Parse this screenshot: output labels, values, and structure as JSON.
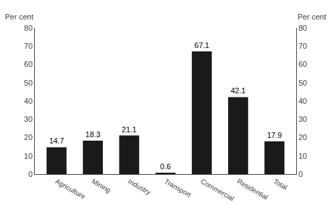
{
  "chart_data": {
    "type": "bar",
    "categories": [
      "Agriculture",
      "Mining",
      "Industry",
      "Transport",
      "Commercial",
      "Residential",
      "Total"
    ],
    "values": [
      14.7,
      18.3,
      21.1,
      0.6,
      67.1,
      42.1,
      17.9
    ],
    "color": "#1a1a1a",
    "ylabel": "Per cent",
    "y2label": "Per cent",
    "ylim": [
      0,
      80
    ],
    "yticks": [
      0,
      10,
      20,
      30,
      40,
      50,
      60,
      70,
      80
    ],
    "y2lim": [
      0,
      80
    ],
    "y2ticks": [
      0,
      10,
      20,
      30,
      40,
      50,
      60,
      70,
      80
    ],
    "data_labels": true,
    "grid": false
  }
}
